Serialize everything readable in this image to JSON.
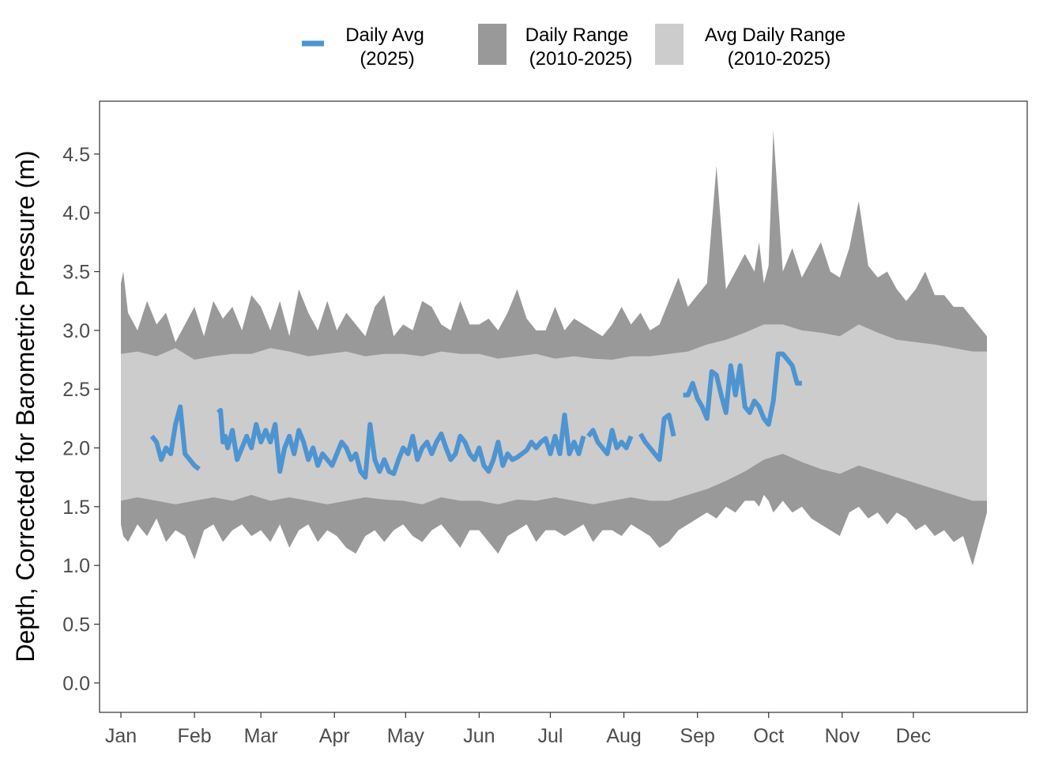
{
  "chart_data": {
    "type": "area",
    "title": "",
    "xlabel": "",
    "ylabel": "Depth, Corrected for Barometric Pressure (m)",
    "ylim": [
      -0.25,
      4.95
    ],
    "y_ticks": [
      "0.0",
      "0.5",
      "1.0",
      "1.5",
      "2.0",
      "2.5",
      "3.0",
      "3.5",
      "4.0",
      "4.5"
    ],
    "x_ticks": [
      "Jan",
      "Feb",
      "Mar",
      "Apr",
      "May",
      "Jun",
      "Jul",
      "Aug",
      "Sep",
      "Oct",
      "Nov",
      "Dec"
    ],
    "x_tick_days": [
      1,
      32,
      60,
      91,
      121,
      152,
      182,
      213,
      244,
      274,
      305,
      335
    ],
    "xlim": [
      -8,
      383
    ],
    "legend": {
      "position": "top",
      "items": [
        {
          "label_line1": "Daily Avg",
          "label_line2": "(2025)",
          "type": "line",
          "color": "#4e94d1"
        },
        {
          "label_line1": "Daily Range",
          "label_line2": "(2010-2025)",
          "type": "fill",
          "color": "#999999"
        },
        {
          "label_line1": "Avg Daily Range",
          "label_line2": "(2010-2025)",
          "type": "fill",
          "color": "#cccccc"
        }
      ]
    },
    "series": [
      {
        "name": "Daily Range (2010-2025)",
        "type": "ribbon",
        "color": "#999999",
        "x": [
          1,
          2,
          4,
          8,
          12,
          16,
          20,
          24,
          28,
          32,
          36,
          40,
          44,
          48,
          52,
          56,
          60,
          64,
          68,
          72,
          76,
          80,
          84,
          88,
          92,
          96,
          100,
          104,
          108,
          112,
          116,
          120,
          124,
          128,
          132,
          136,
          140,
          144,
          148,
          152,
          156,
          160,
          164,
          168,
          172,
          176,
          180,
          184,
          188,
          192,
          196,
          200,
          204,
          208,
          212,
          216,
          220,
          224,
          228,
          232,
          236,
          240,
          244,
          248,
          252,
          256,
          260,
          264,
          268,
          270,
          272,
          274,
          276,
          280,
          284,
          288,
          292,
          296,
          300,
          304,
          308,
          312,
          316,
          320,
          324,
          328,
          332,
          336,
          340,
          344,
          348,
          352,
          356,
          360,
          364,
          366
        ],
        "upper": [
          3.4,
          3.5,
          3.15,
          3.0,
          3.25,
          3.05,
          3.15,
          2.9,
          3.05,
          3.2,
          2.95,
          3.25,
          3.1,
          3.2,
          3.0,
          3.3,
          3.2,
          3.0,
          3.25,
          2.95,
          3.35,
          3.15,
          3.0,
          3.25,
          3.0,
          3.15,
          3.05,
          2.95,
          3.2,
          3.3,
          2.95,
          3.05,
          3.0,
          3.25,
          3.2,
          3.05,
          3.0,
          3.25,
          3.05,
          3.05,
          3.1,
          3.0,
          3.15,
          3.35,
          3.1,
          3.0,
          3.0,
          3.2,
          3.0,
          3.1,
          3.05,
          3.0,
          2.95,
          3.05,
          3.2,
          3.05,
          3.15,
          3.0,
          3.05,
          3.25,
          3.45,
          3.2,
          3.3,
          3.4,
          4.4,
          3.35,
          3.5,
          3.65,
          3.5,
          3.75,
          3.4,
          3.55,
          4.7,
          3.5,
          3.7,
          3.45,
          3.6,
          3.75,
          3.5,
          3.45,
          3.7,
          4.1,
          3.55,
          3.45,
          3.5,
          3.35,
          3.25,
          3.35,
          3.5,
          3.3,
          3.3,
          3.2,
          3.2,
          3.1,
          3.0,
          2.95
        ],
        "lower": [
          1.35,
          1.25,
          1.2,
          1.35,
          1.25,
          1.4,
          1.2,
          1.3,
          1.25,
          1.05,
          1.3,
          1.35,
          1.2,
          1.3,
          1.35,
          1.25,
          1.3,
          1.2,
          1.35,
          1.15,
          1.3,
          1.35,
          1.2,
          1.3,
          1.25,
          1.15,
          1.1,
          1.25,
          1.3,
          1.2,
          1.3,
          1.35,
          1.25,
          1.2,
          1.3,
          1.35,
          1.25,
          1.15,
          1.3,
          1.3,
          1.2,
          1.1,
          1.25,
          1.3,
          1.35,
          1.2,
          1.3,
          1.3,
          1.25,
          1.3,
          1.35,
          1.2,
          1.3,
          1.3,
          1.25,
          1.35,
          1.3,
          1.25,
          1.15,
          1.2,
          1.3,
          1.35,
          1.4,
          1.45,
          1.4,
          1.5,
          1.45,
          1.55,
          1.55,
          1.5,
          1.6,
          1.55,
          1.45,
          1.55,
          1.45,
          1.5,
          1.4,
          1.35,
          1.3,
          1.25,
          1.45,
          1.5,
          1.4,
          1.45,
          1.35,
          1.45,
          1.4,
          1.3,
          1.35,
          1.25,
          1.3,
          1.2,
          1.25,
          1.0,
          1.3,
          1.45
        ]
      },
      {
        "name": "Avg Daily Range (2010-2025)",
        "type": "ribbon",
        "color": "#cccccc",
        "x": [
          1,
          8,
          16,
          24,
          32,
          40,
          48,
          56,
          64,
          72,
          80,
          88,
          96,
          104,
          112,
          120,
          128,
          136,
          144,
          152,
          160,
          168,
          176,
          184,
          192,
          200,
          208,
          216,
          224,
          232,
          240,
          248,
          256,
          264,
          272,
          280,
          288,
          296,
          304,
          312,
          320,
          328,
          336,
          344,
          352,
          360,
          366
        ],
        "upper": [
          2.8,
          2.82,
          2.78,
          2.85,
          2.75,
          2.78,
          2.8,
          2.8,
          2.85,
          2.82,
          2.78,
          2.8,
          2.82,
          2.78,
          2.8,
          2.8,
          2.78,
          2.82,
          2.8,
          2.8,
          2.76,
          2.78,
          2.8,
          2.76,
          2.78,
          2.76,
          2.75,
          2.78,
          2.78,
          2.8,
          2.82,
          2.88,
          2.92,
          2.98,
          3.05,
          3.05,
          3.0,
          2.98,
          2.95,
          3.05,
          2.98,
          2.92,
          2.9,
          2.88,
          2.85,
          2.82,
          2.82
        ],
        "lower": [
          1.55,
          1.58,
          1.55,
          1.52,
          1.55,
          1.58,
          1.55,
          1.6,
          1.55,
          1.58,
          1.55,
          1.52,
          1.55,
          1.58,
          1.56,
          1.55,
          1.52,
          1.58,
          1.55,
          1.55,
          1.52,
          1.56,
          1.55,
          1.58,
          1.55,
          1.52,
          1.55,
          1.58,
          1.55,
          1.55,
          1.6,
          1.65,
          1.72,
          1.8,
          1.9,
          1.95,
          1.88,
          1.82,
          1.78,
          1.85,
          1.8,
          1.75,
          1.7,
          1.65,
          1.6,
          1.55,
          1.55
        ]
      },
      {
        "name": "Daily Avg (2025)",
        "type": "line",
        "color": "#4e94d1",
        "segments": [
          {
            "x": [
              14,
              16,
              18,
              20,
              22,
              24,
              26,
              27,
              28,
              30,
              32,
              34
            ],
            "y": [
              2.1,
              2.05,
              1.9,
              2.0,
              1.95,
              2.2,
              2.35,
              2.15,
              1.95,
              1.9,
              1.85,
              1.82
            ]
          },
          {
            "x": [
              42,
              43,
              44,
              45,
              46,
              48,
              50,
              52,
              54,
              56,
              58,
              60,
              62,
              64,
              66,
              68,
              70,
              72,
              74,
              76,
              78,
              80,
              82,
              84,
              86,
              88,
              90,
              92,
              94,
              96,
              98,
              100,
              102,
              104,
              106,
              108,
              110,
              112,
              114,
              116,
              118,
              120,
              122,
              124,
              126,
              128,
              130,
              132,
              134,
              136,
              138,
              140,
              142,
              144,
              146,
              148,
              150,
              152,
              154,
              156,
              158,
              160,
              162,
              164,
              166,
              168,
              170,
              172,
              174,
              176,
              178,
              180,
              182,
              184,
              186,
              188,
              190,
              192,
              194,
              196
            ],
            "y": [
              2.3,
              2.32,
              2.05,
              2.1,
              2.0,
              2.15,
              1.9,
              2.0,
              2.1,
              2.0,
              2.2,
              2.05,
              2.15,
              2.05,
              2.2,
              1.8,
              2.0,
              2.1,
              1.95,
              2.15,
              2.05,
              1.9,
              2.0,
              1.85,
              1.95,
              1.9,
              1.85,
              1.95,
              2.05,
              2.0,
              1.9,
              1.95,
              1.8,
              1.75,
              2.2,
              1.9,
              1.8,
              1.9,
              1.8,
              1.78,
              1.9,
              2.0,
              1.95,
              2.1,
              1.9,
              2.0,
              2.05,
              1.95,
              2.05,
              2.12,
              2.0,
              1.9,
              1.95,
              2.1,
              2.05,
              1.95,
              1.9,
              2.0,
              1.85,
              1.8,
              1.9,
              2.05,
              1.85,
              1.95,
              1.9,
              1.92,
              1.95,
              1.98,
              2.05,
              2.0,
              2.05,
              2.08,
              1.95,
              2.1,
              1.95,
              2.28,
              1.95,
              2.05,
              1.95,
              2.1
            ]
          },
          {
            "x": [
              198,
              200,
              202,
              204,
              206,
              208,
              210,
              212,
              214,
              216
            ],
            "y": [
              2.1,
              2.15,
              2.05,
              2.0,
              1.95,
              2.15,
              2.0,
              2.05,
              2.0,
              2.1
            ]
          },
          {
            "x": [
              220,
              222,
              224,
              226,
              228,
              230,
              232,
              234
            ],
            "y": [
              2.12,
              2.05,
              2.0,
              1.95,
              1.9,
              2.25,
              2.28,
              2.1
            ]
          },
          {
            "x": [
              238,
              240,
              242,
              244,
              246,
              248,
              250,
              252,
              254,
              256,
              258,
              260,
              262,
              264,
              266,
              268,
              270,
              272,
              274,
              276,
              278,
              280,
              282,
              284,
              286,
              288
            ],
            "y": [
              2.45,
              2.45,
              2.55,
              2.42,
              2.35,
              2.25,
              2.65,
              2.62,
              2.45,
              2.3,
              2.7,
              2.45,
              2.7,
              2.35,
              2.3,
              2.4,
              2.35,
              2.25,
              2.2,
              2.4,
              2.8,
              2.8,
              2.75,
              2.7,
              2.55,
              2.55
            ]
          }
        ]
      }
    ]
  }
}
